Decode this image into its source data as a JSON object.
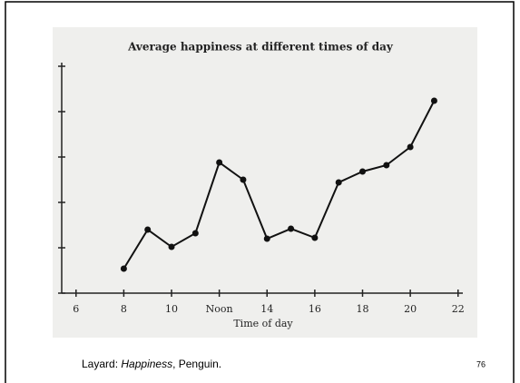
{
  "chart_data": {
    "type": "line",
    "title": "Average happiness at different times of day",
    "x_label": "Time of day",
    "x": [
      8,
      9,
      10,
      11,
      12,
      13,
      14,
      15,
      16,
      17,
      18,
      19,
      20,
      21
    ],
    "series": [
      {
        "color": "#111111",
        "values": [
          0.54,
          1.4,
          1.02,
          1.32,
          2.88,
          2.5,
          1.2,
          1.42,
          1.22,
          2.44,
          2.68,
          2.82,
          3.22,
          4.24
        ]
      }
    ],
    "xlim": [
      5.4,
      22.2
    ],
    "xticks": [
      6,
      8,
      10,
      {
        "value": 12,
        "label": "Noon"
      },
      14,
      16,
      18,
      20,
      22
    ],
    "ylim": [
      0,
      5
    ],
    "yticks": [
      0,
      1,
      2,
      3,
      4,
      5
    ]
  },
  "caption": {
    "author": "Layard:",
    "book": "Happiness",
    "publisher": "Penguin."
  },
  "slide_number": "76"
}
